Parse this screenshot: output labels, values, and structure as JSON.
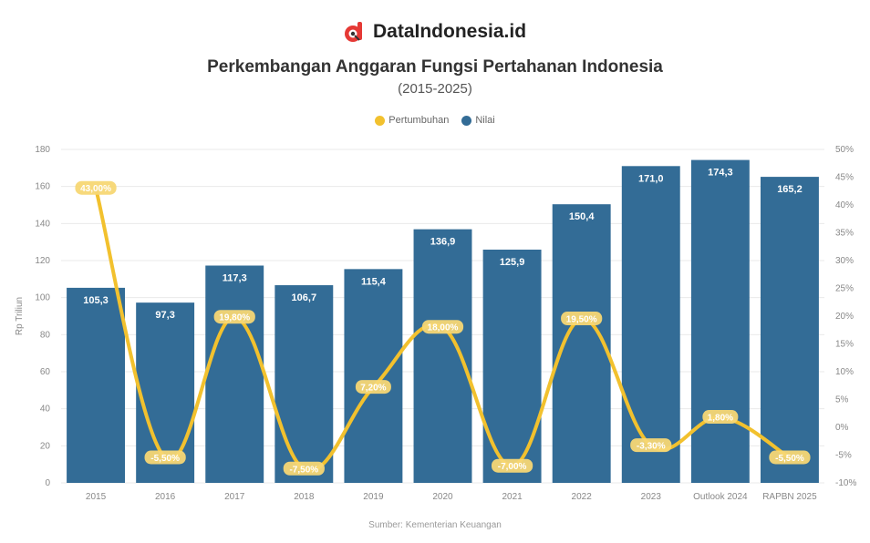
{
  "brand": {
    "name": "DataIndonesia.id",
    "logo_icon": "dataindonesia-logo-icon"
  },
  "chart_data": {
    "type": "bar",
    "title": "Perkembangan Anggaran Fungsi Pertahanan Indonesia",
    "subtitle": "(2015-2025)",
    "categories": [
      "2015",
      "2016",
      "2017",
      "2018",
      "2019",
      "2020",
      "2021",
      "2022",
      "2023",
      "Outlook 2024",
      "RAPBN 2025"
    ],
    "ylabel": "Rp Triliun",
    "ylim": [
      0,
      180
    ],
    "y_ticks": [
      "0",
      "20",
      "40",
      "60",
      "80",
      "100",
      "120",
      "140",
      "160",
      "180"
    ],
    "y2lim": [
      -10,
      50
    ],
    "y2_ticks": [
      "-10%",
      "-5%",
      "0%",
      "5%",
      "10%",
      "15%",
      "20%",
      "25%",
      "30%",
      "35%",
      "40%",
      "45%",
      "50%"
    ],
    "grid": true,
    "legend_position": "top",
    "series": [
      {
        "name": "Pertumbuhan",
        "type": "line",
        "axis": "right",
        "color": "#f2c12e",
        "values": [
          43,
          -5.5,
          19.8,
          -7.5,
          7.2,
          18,
          -7,
          19.5,
          -3.3,
          1.8,
          -5.5
        ]
      },
      {
        "name": "Nilai",
        "type": "bar",
        "axis": "left",
        "color": "#336c96",
        "values": [
          105.3,
          97.3,
          117.3,
          106.7,
          115.4,
          136.9,
          125.9,
          150.4,
          171.0,
          174.3,
          165.2
        ]
      }
    ]
  },
  "source": "Sumber: Kementerian Keuangan"
}
